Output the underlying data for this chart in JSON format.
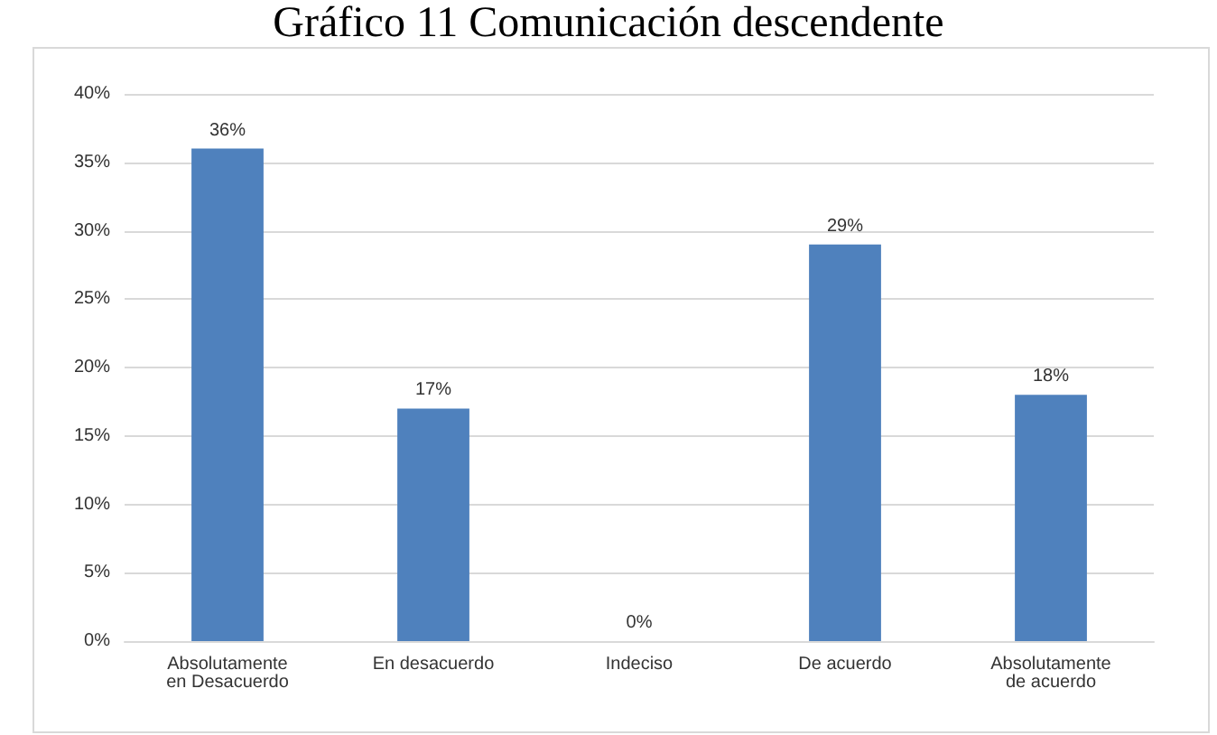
{
  "chart_data": {
    "type": "bar",
    "title": "Gráfico 11 Comunicación descendente",
    "categories": [
      "Absolutamente\nen Desacuerdo",
      "En desacuerdo",
      "Indeciso",
      "De acuerdo",
      "Absolutamente\nde acuerdo"
    ],
    "values": [
      36,
      17,
      0,
      29,
      18
    ],
    "value_labels": [
      "36%",
      "17%",
      "0%",
      "29%",
      "18%"
    ],
    "color": "#4f81bd",
    "ylim": [
      0,
      40
    ],
    "yticks": [
      {
        "value": 0,
        "label": "0%"
      },
      {
        "value": 5,
        "label": "5%"
      },
      {
        "value": 10,
        "label": "10%"
      },
      {
        "value": 15,
        "label": "15%"
      },
      {
        "value": 20,
        "label": "20%"
      },
      {
        "value": 25,
        "label": "25%"
      },
      {
        "value": 30,
        "label": "30%"
      },
      {
        "value": 35,
        "label": "35%"
      },
      {
        "value": 40,
        "label": "40%"
      }
    ],
    "grid": "y"
  }
}
